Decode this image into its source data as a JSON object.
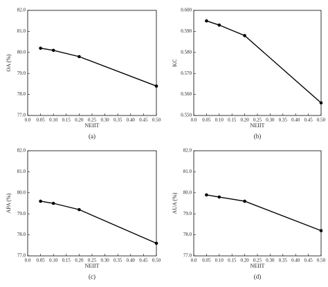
{
  "chart_data": [
    {
      "type": "line",
      "caption": "(a)",
      "xlabel": "NEIIT",
      "ylabel": "OA (%)",
      "x": [
        0.05,
        0.1,
        0.2,
        0.5
      ],
      "series": [
        {
          "color": "#000000",
          "values": [
            80.2,
            80.1,
            79.8,
            78.4
          ]
        }
      ],
      "xlim": [
        0,
        0.5
      ],
      "xticks": [
        {
          "value": 0,
          "label": "0.0"
        },
        0.05,
        {
          "value": 0.1,
          "label": "0.10"
        },
        0.15,
        {
          "value": 0.2,
          "label": "0.20"
        },
        0.25,
        {
          "value": 0.3,
          "label": "0.30"
        },
        0.35,
        {
          "value": 0.4,
          "label": "0.40"
        },
        0.45,
        {
          "value": 0.5,
          "label": "0.50"
        }
      ],
      "ylim": [
        77,
        82
      ],
      "yticks": [
        {
          "value": 77,
          "label": "77.0"
        },
        {
          "value": 78,
          "label": "78.0"
        },
        {
          "value": 79,
          "label": "79.0"
        },
        {
          "value": 80,
          "label": "80.0"
        },
        {
          "value": 81,
          "label": "81.0"
        },
        {
          "value": 82,
          "label": "82.0"
        }
      ]
    },
    {
      "type": "line",
      "caption": "(b)",
      "xlabel": "NEIIT",
      "ylabel": "KC",
      "x": [
        0.05,
        0.1,
        0.2,
        0.5
      ],
      "series": [
        {
          "color": "#000000",
          "values": [
            0.595,
            0.593,
            0.588,
            0.556
          ]
        }
      ],
      "xlim": [
        0,
        0.5
      ],
      "xticks": [
        {
          "value": 0,
          "label": "0.0"
        },
        0.05,
        {
          "value": 0.1,
          "label": "0.10"
        },
        0.15,
        {
          "value": 0.2,
          "label": "0.20"
        },
        0.25,
        {
          "value": 0.3,
          "label": "0.30"
        },
        0.35,
        {
          "value": 0.4,
          "label": "0.40"
        },
        0.45,
        {
          "value": 0.5,
          "label": "0.50"
        }
      ],
      "ylim": [
        0.55,
        0.6
      ],
      "yticks": [
        {
          "value": 0.55,
          "label": "0.550"
        },
        {
          "value": 0.56,
          "label": "0.560"
        },
        {
          "value": 0.57,
          "label": "0.570"
        },
        {
          "value": 0.58,
          "label": "0.580"
        },
        {
          "value": 0.59,
          "label": "0.590"
        },
        {
          "value": 0.6,
          "label": "0.600"
        }
      ]
    },
    {
      "type": "line",
      "caption": "(c)",
      "xlabel": "NEIIT",
      "ylabel": "APA (%)",
      "x": [
        0.05,
        0.1,
        0.2,
        0.5
      ],
      "series": [
        {
          "color": "#000000",
          "values": [
            79.6,
            79.5,
            79.2,
            77.6
          ]
        }
      ],
      "xlim": [
        0,
        0.5
      ],
      "xticks": [
        {
          "value": 0,
          "label": "0.0"
        },
        0.05,
        {
          "value": 0.1,
          "label": "0.10"
        },
        0.15,
        {
          "value": 0.2,
          "label": "0.20"
        },
        0.25,
        {
          "value": 0.3,
          "label": "0.30"
        },
        0.35,
        {
          "value": 0.4,
          "label": "0.40"
        },
        0.45,
        {
          "value": 0.5,
          "label": "0.50"
        }
      ],
      "ylim": [
        77,
        82
      ],
      "yticks": [
        {
          "value": 77,
          "label": "77.0"
        },
        {
          "value": 78,
          "label": "78.0"
        },
        {
          "value": 79,
          "label": "79.0"
        },
        {
          "value": 80,
          "label": "80.0"
        },
        {
          "value": 81,
          "label": "81.0"
        },
        {
          "value": 82,
          "label": "82.0"
        }
      ]
    },
    {
      "type": "line",
      "caption": "(d)",
      "xlabel": "NEIIT",
      "ylabel": "AUA (%)",
      "x": [
        0.05,
        0.1,
        0.2,
        0.5
      ],
      "series": [
        {
          "color": "#000000",
          "values": [
            79.9,
            79.8,
            79.6,
            78.2
          ]
        }
      ],
      "xlim": [
        0,
        0.5
      ],
      "xticks": [
        {
          "value": 0,
          "label": "0.0"
        },
        0.05,
        {
          "value": 0.1,
          "label": "0.10"
        },
        0.15,
        {
          "value": 0.2,
          "label": "0.20"
        },
        0.25,
        {
          "value": 0.3,
          "label": "0.30"
        },
        0.35,
        {
          "value": 0.4,
          "label": "0.40"
        },
        0.45,
        {
          "value": 0.5,
          "label": "0.50"
        }
      ],
      "ylim": [
        77,
        82
      ],
      "yticks": [
        {
          "value": 77,
          "label": "77.0"
        },
        {
          "value": 78,
          "label": "78.0"
        },
        {
          "value": 79,
          "label": "79.0"
        },
        {
          "value": 80,
          "label": "80.0"
        },
        {
          "value": 81,
          "label": "81.0"
        },
        {
          "value": 82,
          "label": "82.0"
        }
      ]
    }
  ]
}
